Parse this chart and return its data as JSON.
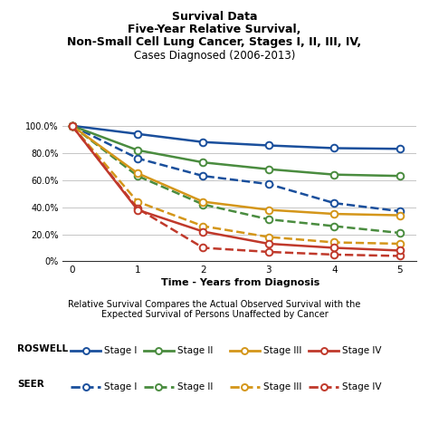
{
  "title_line1": "Survival Data",
  "title_line2": "Five-Year Relative Survival,",
  "title_line3": "Non-Small Cell Lung Cancer, Stages I, II, III, IV,",
  "title_line4": "Cases Diagnosed (2006-2013)",
  "xlabel": "Time - Years from Diagnosis",
  "footnote": "Relative Survival Compares the Actual Observed Survival with the\nExpected Survival of Persons Unaffected by Cancer",
  "x": [
    0,
    1,
    2,
    3,
    4,
    5
  ],
  "roswell_stage1": [
    100.0,
    94.0,
    88.0,
    85.5,
    83.5,
    83.0
  ],
  "roswell_stage2": [
    100.0,
    82.0,
    73.0,
    68.0,
    64.0,
    63.0
  ],
  "roswell_stage3": [
    100.0,
    65.0,
    44.0,
    38.0,
    35.0,
    34.0
  ],
  "roswell_stage4": [
    100.0,
    38.0,
    22.0,
    13.0,
    10.0,
    8.0
  ],
  "seer_stage1": [
    100.0,
    76.0,
    63.0,
    57.0,
    43.0,
    37.0
  ],
  "seer_stage2": [
    100.0,
    63.0,
    42.0,
    31.0,
    26.0,
    21.0
  ],
  "seer_stage3": [
    100.0,
    44.0,
    26.0,
    18.0,
    14.0,
    13.0
  ],
  "seer_stage4": [
    100.0,
    39.0,
    10.0,
    7.0,
    5.0,
    4.0
  ],
  "color_stage1": "#1a4f9c",
  "color_stage2": "#4a8c3f",
  "color_stage3": "#d4961a",
  "color_stage4": "#c0392b",
  "bg_color": "#ffffff",
  "ylim": [
    0,
    105
  ],
  "yticks": [
    0,
    20,
    40,
    60,
    80,
    100
  ],
  "ytick_labels": [
    "0%",
    "20.0%",
    "40.0%",
    "60.0%",
    "80.0%",
    "100.0%"
  ],
  "xticks": [
    0,
    1,
    2,
    3,
    4,
    5
  ]
}
